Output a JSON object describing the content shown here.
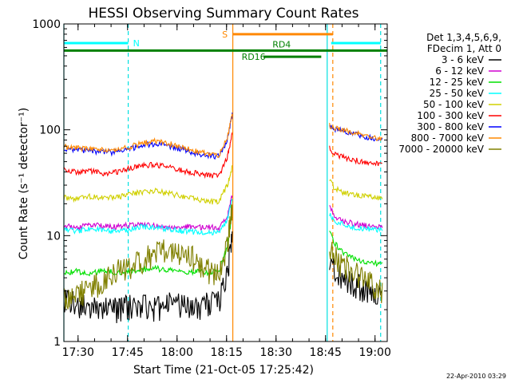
{
  "chart_data": {
    "type": "line",
    "title": "HESSI Observing Summary Count Rates",
    "xlabel": "Start Time (21-Oct-05 17:25:42)",
    "ylabel": "Count Rate (s⁻¹ detector⁻¹)",
    "x_unit": "minutes",
    "xlim": [
      0,
      98
    ],
    "ylim": [
      1,
      1000
    ],
    "y_scale": "log",
    "x_ticks": [
      {
        "x": 4.3,
        "label": "17:30"
      },
      {
        "x": 19.3,
        "label": "17:45"
      },
      {
        "x": 34.3,
        "label": "18:00"
      },
      {
        "x": 49.3,
        "label": "18:15"
      },
      {
        "x": 64.3,
        "label": "18:30"
      },
      {
        "x": 79.3,
        "label": "18:45"
      },
      {
        "x": 94.3,
        "label": "19:00"
      }
    ],
    "y_ticks": [
      {
        "y": 1,
        "label": "1"
      },
      {
        "y": 10,
        "label": "10"
      },
      {
        "y": 100,
        "label": "100"
      },
      {
        "y": 1000,
        "label": "1000"
      }
    ],
    "footer": "22-Apr-2010 03:29",
    "legend": {
      "header": [
        "Det 1,3,4,5,6,9,",
        "FDecim 1, Att 0"
      ],
      "placement": "right"
    },
    "series": [
      {
        "name": "3 - 6 keV",
        "color": "#000000",
        "x": [
          0,
          4,
          8,
          12,
          16,
          20,
          24,
          28,
          32,
          36,
          40,
          44,
          47,
          49.5,
          51,
          80.5,
          82,
          84,
          86,
          88,
          90,
          92,
          94,
          96
        ],
        "y": [
          2.6,
          2.3,
          2.1,
          2.2,
          2.0,
          2.2,
          2.3,
          2.1,
          2.4,
          2.2,
          2.1,
          2.3,
          2.4,
          4.5,
          9.0,
          6.5,
          5.0,
          4.2,
          3.8,
          3.5,
          3.3,
          3.1,
          2.9,
          2.7
        ]
      },
      {
        "name": "6 - 12 keV",
        "color": "#d000d0",
        "x": [
          0,
          4,
          8,
          12,
          16,
          20,
          24,
          28,
          32,
          36,
          40,
          44,
          47,
          49.5,
          51,
          80.5,
          82,
          84,
          86,
          88,
          90,
          92,
          94,
          96
        ],
        "y": [
          12.5,
          12.0,
          12.8,
          12.3,
          12.1,
          12.6,
          12.9,
          12.4,
          12.0,
          12.3,
          12.1,
          12.0,
          11.8,
          15,
          24,
          19,
          15.5,
          14,
          13.5,
          13,
          12.7,
          12.4,
          12.2,
          12.0
        ]
      },
      {
        "name": "12 - 25 keV",
        "color": "#00e000",
        "x": [
          0,
          4,
          8,
          12,
          16,
          20,
          24,
          28,
          32,
          36,
          40,
          44,
          47,
          49.5,
          51,
          80.5,
          82,
          84,
          86,
          88,
          90,
          92,
          94,
          96
        ],
        "y": [
          4.5,
          4.6,
          4.4,
          4.7,
          4.5,
          4.6,
          4.8,
          4.9,
          4.7,
          4.5,
          4.6,
          4.4,
          4.6,
          8,
          16,
          11,
          8.5,
          7.2,
          6.5,
          6,
          5.8,
          5.6,
          5.5,
          5.3
        ]
      },
      {
        "name": "25 - 50 keV",
        "color": "#00ffff",
        "x": [
          0,
          4,
          8,
          12,
          16,
          20,
          24,
          28,
          32,
          36,
          40,
          44,
          47,
          49.5,
          51,
          80.5,
          82,
          84,
          86,
          88,
          90,
          92,
          94,
          96
        ],
        "y": [
          11.5,
          11.0,
          11.8,
          11.2,
          10.9,
          11.5,
          12.2,
          12.0,
          11.5,
          11.0,
          10.8,
          10.6,
          10.8,
          14,
          22,
          16,
          14,
          13,
          12.4,
          12,
          11.8,
          11.6,
          11.5,
          11.4
        ]
      },
      {
        "name": "50 - 100 keV",
        "color": "#d0d000",
        "x": [
          0,
          4,
          8,
          12,
          16,
          20,
          24,
          28,
          32,
          36,
          40,
          44,
          47,
          49.5,
          51,
          80.5,
          82,
          84,
          86,
          88,
          90,
          92,
          94,
          96
        ],
        "y": [
          23,
          22,
          23.5,
          22.5,
          23,
          24.5,
          26,
          26.5,
          25,
          23.5,
          22,
          21,
          21,
          30,
          44,
          34,
          28,
          26,
          25,
          24.5,
          24,
          23.5,
          23,
          22.5
        ]
      },
      {
        "name": "100 - 300 keV",
        "color": "#ff0000",
        "x": [
          0,
          4,
          8,
          12,
          16,
          20,
          24,
          28,
          32,
          36,
          40,
          44,
          47,
          49.5,
          51,
          80.5,
          82,
          84,
          86,
          88,
          90,
          92,
          94,
          96
        ],
        "y": [
          42,
          40,
          41,
          39,
          40,
          43,
          46,
          47,
          44,
          41,
          39,
          37,
          37,
          55,
          90,
          68,
          60,
          56,
          54,
          52,
          50,
          49,
          48,
          47
        ]
      },
      {
        "name": "300 - 800 keV",
        "color": "#0000ff",
        "x": [
          0,
          4,
          8,
          12,
          16,
          20,
          24,
          28,
          32,
          36,
          40,
          44,
          47,
          49.5,
          51,
          80.5,
          82,
          84,
          86,
          88,
          90,
          92,
          94,
          96
        ],
        "y": [
          67,
          64,
          63,
          62,
          61,
          66,
          72,
          74,
          70,
          65,
          60,
          57,
          56,
          80,
          140,
          108,
          102,
          98,
          95,
          91,
          88,
          85,
          82,
          80
        ]
      },
      {
        "name": "800 - 7000 keV",
        "color": "#ff8800",
        "x": [
          0,
          4,
          8,
          12,
          16,
          20,
          24,
          28,
          32,
          36,
          40,
          44,
          47,
          49.5,
          51,
          80.5,
          82,
          84,
          86,
          88,
          90,
          92,
          94,
          96
        ],
        "y": [
          69,
          67,
          66,
          65,
          64,
          69,
          75,
          78,
          74,
          68,
          63,
          59,
          58,
          82,
          145,
          110,
          104,
          100,
          97,
          93,
          90,
          87,
          84,
          82
        ]
      },
      {
        "name": "7000 - 20000 keV",
        "color": "#808000",
        "x": [
          0,
          4,
          8,
          12,
          16,
          20,
          24,
          28,
          32,
          36,
          40,
          44,
          47,
          49.5,
          51,
          80.5,
          82,
          84,
          86,
          88,
          90,
          92,
          94,
          96
        ],
        "y": [
          2.6,
          2.8,
          3.2,
          3.9,
          4.6,
          5.2,
          6.0,
          7.0,
          7.5,
          7.0,
          6.0,
          4.8,
          4.2,
          8,
          20,
          8,
          6.5,
          5.5,
          5.0,
          4.6,
          4.2,
          3.8,
          3.4,
          3.0
        ]
      }
    ],
    "vlines": [
      {
        "x": 0,
        "color": "#00e0e0",
        "style": "solid"
      },
      {
        "x": 19.5,
        "color": "#00e0e0",
        "style": "dashed"
      },
      {
        "x": 51.2,
        "color": "#ff8800",
        "style": "solid"
      },
      {
        "x": 79.8,
        "color": "#00e0e0",
        "style": "solid"
      },
      {
        "x": 81.5,
        "color": "#ff8800",
        "style": "dashed"
      },
      {
        "x": 96.0,
        "color": "#00e0e0",
        "style": "dashed"
      }
    ],
    "bars": [
      {
        "label": "N",
        "color": "#00ffff",
        "segments": [
          [
            0,
            19.5
          ],
          [
            81.0,
            96.0
          ]
        ],
        "y": 660
      },
      {
        "label": "S",
        "color": "#ff8800",
        "segments": [
          [
            51.2,
            81.5
          ]
        ],
        "y": 800
      },
      {
        "label": "RD4",
        "color": "#008000",
        "segments": [
          [
            0,
            98.0
          ]
        ],
        "y": 560
      },
      {
        "label": "RD16",
        "color": "#008000",
        "segments": [
          [
            60.5,
            78.0
          ]
        ],
        "y": 490
      }
    ]
  }
}
